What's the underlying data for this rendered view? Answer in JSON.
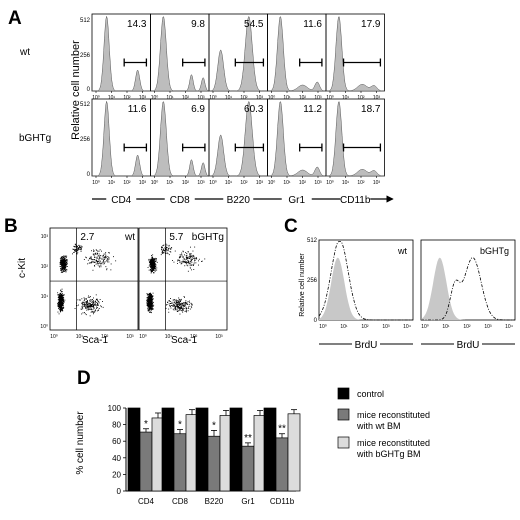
{
  "panel_labels": {
    "a": "A",
    "b": "B",
    "c": "C",
    "d": "D"
  },
  "panel_a": {
    "y_axis_label": "Relative cell number",
    "y_ticks": [
      "512",
      "256",
      "0"
    ],
    "x_ticks": [
      "10⁰",
      "10¹",
      "10²",
      "10³"
    ],
    "rows": [
      {
        "label": "wt",
        "values": [
          "14.3",
          "9.8",
          "54.5",
          "11.6",
          "17.9"
        ]
      },
      {
        "label": "bGHTg",
        "values": [
          "11.6",
          "6.9",
          "60.3",
          "11.2",
          "18.7"
        ]
      }
    ],
    "markers": [
      "CD4",
      "CD8",
      "B220",
      "Gr1",
      "CD11b"
    ]
  },
  "panel_b": {
    "y_label": "c-Kit",
    "x_label": "Sca-1",
    "ticks": [
      "10⁰",
      "10¹",
      "10²",
      "10³"
    ],
    "plots": [
      {
        "label": "wt",
        "value": "2.7"
      },
      {
        "label": "bGHTg",
        "value": "5.7"
      }
    ]
  },
  "panel_c": {
    "y_label": "Relative cell number",
    "y_ticks": [
      "512",
      "256",
      "0"
    ],
    "x_ticks": [
      "10⁰",
      "10¹",
      "10²",
      "10³",
      "10⁴"
    ],
    "plots": [
      {
        "label": "wt",
        "x_label": "BrdU"
      },
      {
        "label": "bGHTg",
        "x_label": "BrdU"
      }
    ]
  },
  "chart_data": {
    "type": "bar",
    "ylabel": "% cell number",
    "ylim": [
      0,
      100
    ],
    "yticks": [
      0,
      20,
      40,
      60,
      80,
      100
    ],
    "categories": [
      "CD4",
      "CD8",
      "B220",
      "Gr1",
      "CD11b"
    ],
    "series": [
      {
        "name": "control",
        "color": "#000000",
        "values": [
          100,
          100,
          100,
          100,
          100
        ],
        "errors": [
          0,
          0,
          0,
          0,
          0
        ],
        "significance": [
          "",
          "",
          "",
          "",
          ""
        ]
      },
      {
        "name": "mice reconstituted with wt BM",
        "color": "#7a7a7a",
        "values": [
          71,
          69,
          66,
          54,
          64
        ],
        "errors": [
          4,
          5,
          7,
          4,
          5
        ],
        "significance": [
          "*",
          "*",
          "*",
          "**",
          "**"
        ]
      },
      {
        "name": "mice reconstituted with bGHTg BM",
        "color": "#dcdcdc",
        "values": [
          88,
          92,
          91,
          91,
          93
        ],
        "errors": [
          6,
          6,
          6,
          6,
          5
        ],
        "significance": [
          "",
          "",
          "",
          "",
          ""
        ]
      }
    ],
    "legend_lines": [
      [
        "control"
      ],
      [
        "mice reconstituted",
        "with wt BM"
      ],
      [
        "mice reconstituted",
        "with bGHTg BM"
      ]
    ],
    "legend_position": "right"
  }
}
